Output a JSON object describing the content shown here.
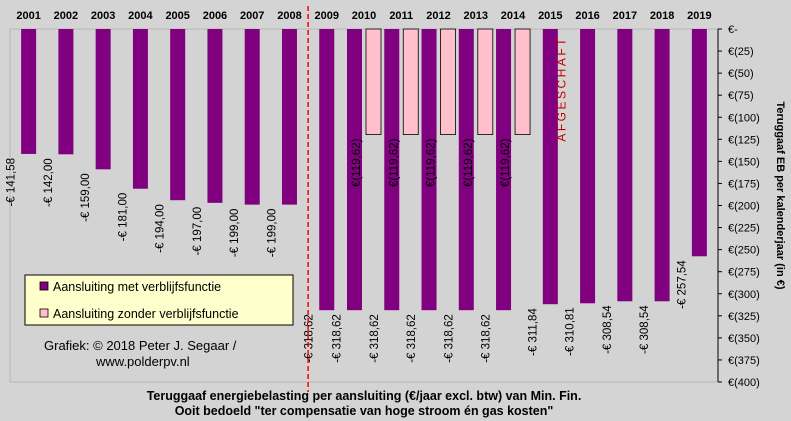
{
  "chart_data": {
    "type": "bar",
    "categories": [
      "2001",
      "2002",
      "2003",
      "2004",
      "2005",
      "2006",
      "2007",
      "2008",
      "2009",
      "2010",
      "2011",
      "2012",
      "2013",
      "2014",
      "2015",
      "2016",
      "2017",
      "2018",
      "2019"
    ],
    "series": [
      {
        "name": "Aansluiting met verblijfsfunctie",
        "color": "#800080",
        "values": [
          -141.58,
          -142.0,
          -159.0,
          -181.0,
          -194.0,
          -197.0,
          -199.0,
          -199.0,
          -318.62,
          -318.62,
          -318.62,
          -318.62,
          -318.62,
          -318.62,
          -311.84,
          -310.81,
          -308.54,
          -308.54,
          -257.54
        ],
        "labels": [
          "-€ 141,58",
          "-€ 142,00",
          "-€ 159,00",
          "-€ 181,00",
          "-€ 194,00",
          "-€ 197,00",
          "-€ 199,00",
          "-€ 199,00",
          "-€ 318,62",
          "-€ 318,62",
          "-€ 318,62",
          "-€ 318,62",
          "-€ 318,62",
          "-€ 318,62",
          "-€ 311,84",
          "-€ 310,81",
          "-€ 308,54",
          "-€ 308,54",
          "-€ 257,54"
        ]
      },
      {
        "name": "Aansluiting zonder verblijfsfunctie",
        "color": "#ffc0cb",
        "values": [
          null,
          null,
          null,
          null,
          null,
          null,
          null,
          null,
          null,
          -119.62,
          -119.62,
          -119.62,
          -119.62,
          -119.62,
          null,
          null,
          null,
          null,
          null
        ],
        "labels": [
          "",
          "",
          "",
          "",
          "",
          "",
          "",
          "",
          "",
          "€(119,62)",
          "€(119,62)",
          "€(119,62)",
          "€(119,62)",
          "€(119,62)",
          "",
          "",
          "",
          "",
          ""
        ]
      }
    ],
    "ylim": [
      -400,
      0
    ],
    "y_ticks": [
      0,
      -25,
      -50,
      -75,
      -100,
      -125,
      -150,
      -175,
      -200,
      -225,
      -250,
      -275,
      -300,
      -325,
      -350,
      -375,
      -400
    ],
    "y_tick_labels": [
      "€-",
      "€(25)",
      "€(50)",
      "€(75)",
      "€(100)",
      "€(125)",
      "€(150)",
      "€(175)",
      "€(200)",
      "€(225)",
      "€(250)",
      "€(275)",
      "€(300)",
      "€(325)",
      "€(350)",
      "€(375)",
      "€(400)"
    ],
    "ylabel": "Teruggaaf EB per kalenderjaar (in €)",
    "xlabel_position": "top",
    "annotation": "AFGESCHAFT",
    "credit_line1": "Grafiek:  © 2018 Peter J. Segaar /",
    "credit_line2": "www.polderpv.nl",
    "title_line1": "Teruggaaf energiebelasting  per aansluiting (€/jaar excl. btw)  van Min.  Fin.",
    "title_line2": "Ooit bedoeld \"ter compensatie van hoge stroom én gas kosten\"",
    "grid": false,
    "legend_placement": "bottom-left",
    "plot_background": "#d3d3d3",
    "divider_color": "#ff0000"
  }
}
